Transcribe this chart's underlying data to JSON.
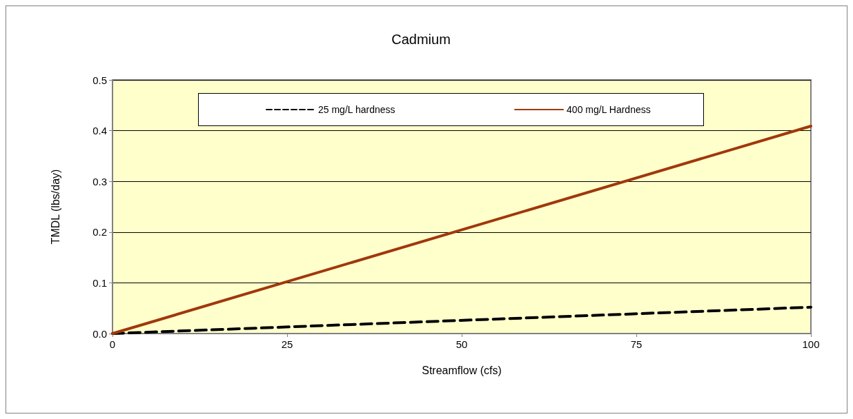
{
  "chart_data": {
    "type": "line",
    "title": "Cadmium",
    "xlabel": "Streamflow (cfs)",
    "ylabel": "TMDL (lbs/day)",
    "x": [
      0,
      100
    ],
    "series": [
      {
        "name": "25 mg/L hardness",
        "color": "#000000",
        "values": [
          0,
          0.052
        ],
        "line_style": "dashed"
      },
      {
        "name": "400 mg/L Hardness",
        "color": "#a0380c",
        "values": [
          0,
          0.409
        ],
        "line_style": "solid"
      }
    ],
    "xlim": [
      0,
      100
    ],
    "xticks": [
      0,
      25,
      50,
      75,
      100
    ],
    "ylim": [
      0,
      0.5
    ],
    "yticks": [
      {
        "value": 0,
        "label": "0.0"
      },
      0.1,
      0.2,
      0.3,
      0.4,
      0.5
    ],
    "grid": "y",
    "legend": "top",
    "marker": "none"
  }
}
